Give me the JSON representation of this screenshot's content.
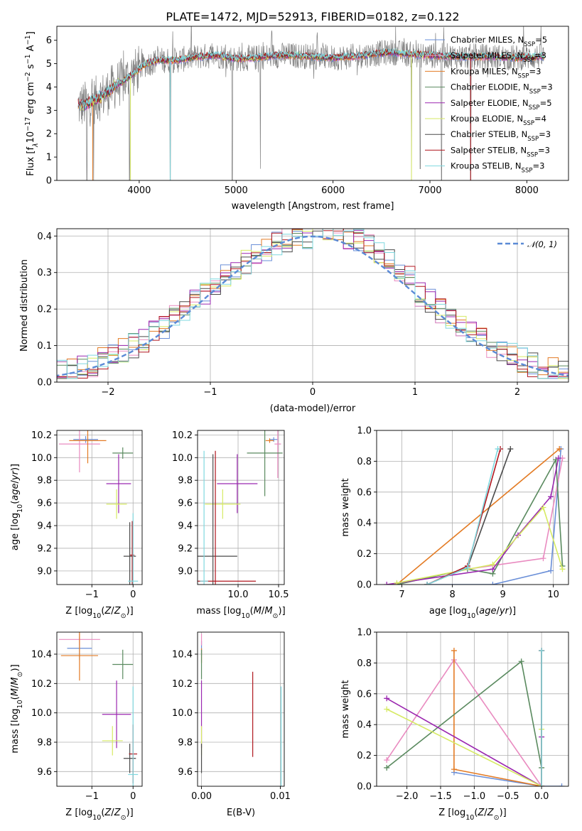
{
  "figure_title": "PLATE=1472, MJD=52913, FIBERID=0182, z=0.122",
  "colors": {
    "Chabrier MILES": "#6a8fd8",
    "Salpeter MILES": "#e98bc0",
    "Kroupa MILES": "#e37b24",
    "Chabrier ELODIE": "#5a8a5f",
    "Salpeter ELODIE": "#9b27b0",
    "Kroupa ELODIE": "#d6ea63",
    "Chabrier STELIB": "#4a4a4a",
    "Salpeter STELIB": "#b0171f",
    "Kroupa STELIB": "#7fd8df",
    "normal": "#5b8ad6",
    "data": "#808080"
  },
  "chart_data": [
    {
      "id": "spectrum",
      "type": "line",
      "title": "PLATE=1472, MJD=52913, FIBERID=0182, z=0.122",
      "xlabel": "wavelength [Angstrom, rest frame]",
      "ylabel_parts": [
        "Flux [f",
        "λ",
        "10",
        "−17",
        " erg cm",
        "−2",
        " s",
        "−1",
        " A",
        "−1",
        "]"
      ],
      "xlim": [
        3150,
        8430
      ],
      "ylim": [
        0,
        6.6
      ],
      "xticks": [
        4000,
        5000,
        6000,
        7000,
        8000
      ],
      "yticks": [
        0,
        1,
        2,
        3,
        4,
        5,
        6
      ],
      "legend_position": "top-right",
      "legend": [
        {
          "name": "Chabrier MILES",
          "nssp": "5"
        },
        {
          "name": "Salpeter MILES",
          "nssp": "3"
        },
        {
          "name": "Kroupa MILES",
          "nssp": "3"
        },
        {
          "name": "Chabrier ELODIE",
          "nssp": "3"
        },
        {
          "name": "Salpeter ELODIE",
          "nssp": "5"
        },
        {
          "name": "Kroupa ELODIE",
          "nssp": "4"
        },
        {
          "name": "Chabrier STELIB",
          "nssp": "3"
        },
        {
          "name": "Salpeter STELIB",
          "nssp": "3"
        },
        {
          "name": "Kroupa STELIB",
          "nssp": "3"
        }
      ],
      "continuum": [
        [
          3370,
          3.2
        ],
        [
          3450,
          3.25
        ],
        [
          3550,
          3.45
        ],
        [
          3650,
          3.7
        ],
        [
          3750,
          4.05
        ],
        [
          3850,
          4.3
        ],
        [
          3950,
          4.6
        ],
        [
          4050,
          4.95
        ],
        [
          4200,
          5.15
        ],
        [
          4400,
          5.15
        ],
        [
          4600,
          5.3
        ],
        [
          4800,
          5.35
        ],
        [
          5000,
          5.2
        ],
        [
          5200,
          5.25
        ],
        [
          5400,
          5.35
        ],
        [
          5600,
          5.35
        ],
        [
          5800,
          5.3
        ],
        [
          6000,
          5.25
        ],
        [
          6200,
          5.3
        ],
        [
          6400,
          5.4
        ],
        [
          6600,
          5.5
        ],
        [
          6800,
          5.4
        ],
        [
          7000,
          5.35
        ],
        [
          7300,
          5.3
        ],
        [
          7600,
          5.3
        ],
        [
          7900,
          5.25
        ],
        [
          8150,
          5.3
        ]
      ],
      "dips": [
        [
          3460,
          0
        ],
        [
          3530,
          0
        ],
        [
          3900,
          0
        ],
        [
          4320,
          0
        ],
        [
          4960,
          0
        ],
        [
          5250,
          0.5
        ],
        [
          6810,
          0
        ],
        [
          6900,
          0.5
        ],
        [
          7120,
          0
        ],
        [
          7420,
          0
        ]
      ]
    },
    {
      "id": "residuals",
      "type": "histogram",
      "xlabel": "(data-model)/error",
      "ylabel": "Normed distribution",
      "xlim": [
        -2.5,
        2.5
      ],
      "ylim": [
        0,
        0.42
      ],
      "xticks": [
        -2,
        -1,
        0,
        1,
        2
      ],
      "yticks": [
        0,
        0.1,
        0.2,
        0.3,
        0.4
      ],
      "legend": "𝒩(0, 1)",
      "legend_position": "top-right",
      "bin_width": 0.1
    },
    {
      "id": "age_vs_Z",
      "type": "errorbar",
      "xlabel": "Z [log10(Z/Z⊙)]",
      "ylabel": "age  [log10(age/yr)]",
      "xlim": [
        -1.85,
        0.22
      ],
      "ylim": [
        8.88,
        10.24
      ],
      "xticks": [
        -1,
        0
      ],
      "yticks": [
        9.0,
        9.2,
        9.4,
        9.6,
        9.8,
        10.0,
        10.2
      ],
      "points": [
        {
          "model": "Chabrier MILES",
          "x": -1.15,
          "xerr": 0.3,
          "y": 10.16,
          "yerr": 0.03
        },
        {
          "model": "Salpeter MILES",
          "x": -1.3,
          "xerr": 0.5,
          "y": 10.12,
          "yerr": 0.25
        },
        {
          "model": "Kroupa MILES",
          "x": -1.1,
          "xerr": 0.45,
          "y": 10.15,
          "yerr": 0.2
        },
        {
          "model": "Chabrier ELODIE",
          "x": -0.25,
          "xerr": 0.25,
          "y": 10.04,
          "yerr": 0.05
        },
        {
          "model": "Salpeter ELODIE",
          "x": -0.35,
          "xerr": 0.3,
          "y": 9.77,
          "yerr": 0.26
        },
        {
          "model": "Kroupa ELODIE",
          "x": -0.4,
          "xerr": 0.25,
          "y": 9.59,
          "yerr": 0.13
        },
        {
          "model": "Chabrier STELIB",
          "x": -0.08,
          "xerr": 0.15,
          "y": 9.13,
          "yerr": 0.3
        },
        {
          "model": "Salpeter STELIB",
          "x": -0.02,
          "xerr": 0.05,
          "y": 9.14,
          "yerr": 0.3
        },
        {
          "model": "Kroupa STELIB",
          "x": 0,
          "xerr": 0.12,
          "y": 8.91,
          "yerr": 0.6
        }
      ]
    },
    {
      "id": "age_vs_mass",
      "type": "errorbar",
      "xlabel": "mass [log10(M/M⊙)]",
      "ylabel": "",
      "xlim": [
        9.5,
        10.57
      ],
      "ylim": [
        8.88,
        10.24
      ],
      "xticks": [
        10.0,
        10.5
      ],
      "yticks": [
        9.0,
        9.2,
        9.4,
        9.6,
        9.8,
        10.0,
        10.2
      ],
      "points": [
        {
          "model": "Chabrier MILES",
          "x": 10.44,
          "xerr": 0.05,
          "y": 10.16,
          "yerr": 0.02
        },
        {
          "model": "Salpeter MILES",
          "x": 10.49,
          "xerr": 0.04,
          "y": 10.12,
          "yerr": 0.3
        },
        {
          "model": "Kroupa MILES",
          "x": 10.39,
          "xerr": 0.05,
          "y": 10.15,
          "yerr": 0.02
        },
        {
          "model": "Chabrier ELODIE",
          "x": 10.33,
          "xerr": 0.22,
          "y": 10.04,
          "yerr": 0.38
        },
        {
          "model": "Salpeter ELODIE",
          "x": 9.99,
          "xerr": 0.25,
          "y": 9.77,
          "yerr": 0.26
        },
        {
          "model": "Kroupa ELODIE",
          "x": 9.81,
          "xerr": 0.22,
          "y": 9.59,
          "yerr": 0.13
        },
        {
          "model": "Chabrier STELIB",
          "x": 9.69,
          "xerr": 0.3,
          "y": 9.13,
          "yerr": 0.9
        },
        {
          "model": "Salpeter STELIB",
          "x": 9.72,
          "xerr": 0.5,
          "y": 8.91,
          "yerr": 1.15
        },
        {
          "model": "Kroupa STELIB",
          "x": 9.58,
          "xerr": 0.05,
          "y": 8.91,
          "yerr": 1.15
        }
      ]
    },
    {
      "id": "weights_vs_age",
      "type": "line",
      "xlabel": "age  [log10(age/yr)]",
      "ylabel": "mass weight",
      "xlim": [
        6.5,
        10.3
      ],
      "ylim": [
        0,
        1
      ],
      "xticks": [
        7,
        8,
        9,
        10
      ],
      "yticks": [
        0,
        0.2,
        0.4,
        0.6,
        0.8,
        1.0
      ],
      "series": [
        {
          "model": "Chabrier MILES",
          "x": [
            7.5,
            8.8,
            9.95,
            10.15
          ],
          "y": [
            0,
            0,
            0.09,
            0.88
          ]
        },
        {
          "model": "Salpeter MILES",
          "x": [
            6.9,
            8.3,
            9.8,
            10.18
          ],
          "y": [
            0,
            0.1,
            0.17,
            0.82
          ]
        },
        {
          "model": "Kroupa MILES",
          "x": [
            6.9,
            10.12
          ],
          "y": [
            0,
            0.88
          ]
        },
        {
          "model": "Chabrier ELODIE",
          "x": [
            6.9,
            8.3,
            8.8,
            10.05,
            10.18
          ],
          "y": [
            0,
            0.1,
            0.07,
            0.81,
            0.12
          ]
        },
        {
          "model": "Salpeter ELODIE",
          "x": [
            6.7,
            8.8,
            9.3,
            9.95,
            10.1
          ],
          "y": [
            0,
            0.1,
            0.32,
            0.57,
            0.82
          ]
        },
        {
          "model": "Kroupa ELODIE",
          "x": [
            6.9,
            8.8,
            9.8,
            10.18
          ],
          "y": [
            0.01,
            0.13,
            0.5,
            0.1
          ]
        },
        {
          "model": "Chabrier STELIB",
          "x": [
            7.5,
            8.3,
            9.15
          ],
          "y": [
            0,
            0.11,
            0.88
          ]
        },
        {
          "model": "Salpeter STELIB",
          "x": [
            7.5,
            8.3,
            8.95
          ],
          "y": [
            0,
            0.12,
            0.88
          ]
        },
        {
          "model": "Kroupa STELIB",
          "x": [
            7.5,
            8.3,
            8.9
          ],
          "y": [
            0,
            0.11,
            0.88
          ]
        }
      ]
    },
    {
      "id": "mass_vs_Z",
      "type": "errorbar",
      "xlabel": "Z [log10(Z/Z⊙)]",
      "ylabel": "mass [log10(M/M⊙)]",
      "xlim": [
        -1.85,
        0.22
      ],
      "ylim": [
        9.5,
        10.55
      ],
      "xticks": [
        -1,
        0
      ],
      "yticks": [
        9.6,
        9.8,
        10.0,
        10.2,
        10.4
      ],
      "points": [
        {
          "model": "Chabrier MILES",
          "x": -1.3,
          "xerr": 0.3,
          "y": 10.44,
          "yerr": 0.08
        },
        {
          "model": "Salpeter MILES",
          "x": -1.3,
          "xerr": 0.5,
          "y": 10.5,
          "yerr": 0.04
        },
        {
          "model": "Kroupa MILES",
          "x": -1.3,
          "xerr": 0.45,
          "y": 10.39,
          "yerr": 0.17
        },
        {
          "model": "Chabrier ELODIE",
          "x": -0.25,
          "xerr": 0.25,
          "y": 10.33,
          "yerr": 0.1
        },
        {
          "model": "Salpeter ELODIE",
          "x": -0.4,
          "xerr": 0.35,
          "y": 9.99,
          "yerr": 0.23
        },
        {
          "model": "Kroupa ELODIE",
          "x": -0.5,
          "xerr": 0.25,
          "y": 9.81,
          "yerr": 0.1
        },
        {
          "model": "Chabrier STELIB",
          "x": -0.08,
          "xerr": 0.15,
          "y": 9.69,
          "yerr": 0.1
        },
        {
          "model": "Salpeter STELIB",
          "x": 0,
          "xerr": 0.1,
          "y": 9.72,
          "yerr": 0.2
        },
        {
          "model": "Kroupa STELIB",
          "x": 0,
          "xerr": 0.12,
          "y": 9.58,
          "yerr": 0.6
        }
      ]
    },
    {
      "id": "mass_vs_ebv",
      "type": "errorbar",
      "xlabel": "E(B-V)",
      "ylabel": "",
      "xlim": [
        -0.0005,
        0.0105
      ],
      "ylim": [
        9.5,
        10.55
      ],
      "xticks": [
        0,
        0.01
      ],
      "xticklabels": [
        "0.00",
        "0.01"
      ],
      "yticks": [
        9.6,
        9.8,
        10.0,
        10.2,
        10.4
      ],
      "points": [
        {
          "model": "Chabrier MILES",
          "x": 0.0,
          "xerr": 0,
          "y": 10.44,
          "yerr": 0.05
        },
        {
          "model": "Salpeter MILES",
          "x": 0.0,
          "xerr": 0,
          "y": 10.5,
          "yerr": 0.04
        },
        {
          "model": "Kroupa MILES",
          "x": 0.0,
          "xerr": 0,
          "y": 10.39,
          "yerr": 0.05
        },
        {
          "model": "Chabrier ELODIE",
          "x": 0.0,
          "xerr": 0,
          "y": 10.33,
          "yerr": 0.1
        },
        {
          "model": "Salpeter ELODIE",
          "x": 0.0,
          "xerr": 0,
          "y": 9.99,
          "yerr": 0.23
        },
        {
          "model": "Kroupa ELODIE",
          "x": 0.0,
          "xerr": 0,
          "y": 9.81,
          "yerr": 0.1
        },
        {
          "model": "Chabrier STELIB",
          "x": 0.0,
          "xerr": 0,
          "y": 9.69,
          "yerr": 0.1
        },
        {
          "model": "Salpeter STELIB",
          "x": 0.0065,
          "xerr": 0,
          "y": 9.99,
          "yerr": 0.29
        },
        {
          "model": "Kroupa STELIB",
          "x": 0.0101,
          "xerr": 0,
          "y": 9.8,
          "yerr": 0.38
        }
      ]
    },
    {
      "id": "weights_vs_Z",
      "type": "line",
      "xlabel": "Z [log10(Z/Z⊙)]",
      "ylabel": "mass weight",
      "xlim": [
        -2.45,
        0.4
      ],
      "ylim": [
        0,
        1
      ],
      "xticks": [
        -2.0,
        -1.5,
        -1.0,
        -0.5,
        0.0
      ],
      "yticks": [
        0,
        0.2,
        0.4,
        0.6,
        0.8,
        1.0
      ],
      "series": [
        {
          "model": "Chabrier MILES",
          "x": [
            -1.3,
            0,
            0.3
          ],
          "y": [
            0.09,
            0,
            0
          ]
        },
        {
          "model": "Salpeter MILES",
          "x": [
            -2.3,
            -1.3,
            0
          ],
          "y": [
            0.17,
            0.82,
            0
          ]
        },
        {
          "model": "Kroupa MILES",
          "x": [
            -1.3,
            -1.3,
            0
          ],
          "y": [
            0.88,
            0.11,
            0
          ]
        },
        {
          "model": "Chabrier ELODIE",
          "x": [
            -2.3,
            -0.3,
            0
          ],
          "y": [
            0.12,
            0.81,
            0.12
          ]
        },
        {
          "model": "Salpeter ELODIE",
          "x": [
            -2.3,
            0,
            0
          ],
          "y": [
            0.57,
            0,
            0.32
          ]
        },
        {
          "model": "Kroupa ELODIE",
          "x": [
            -2.3,
            0,
            0
          ],
          "y": [
            0.5,
            0,
            0.37
          ]
        },
        {
          "model": "Chabrier STELIB",
          "x": [
            0,
            0
          ],
          "y": [
            0.88,
            0
          ]
        },
        {
          "model": "Salpeter STELIB",
          "x": [
            0,
            0
          ],
          "y": [
            0.88,
            0
          ]
        },
        {
          "model": "Kroupa STELIB",
          "x": [
            0,
            0
          ],
          "y": [
            0.88,
            0
          ]
        }
      ]
    }
  ]
}
